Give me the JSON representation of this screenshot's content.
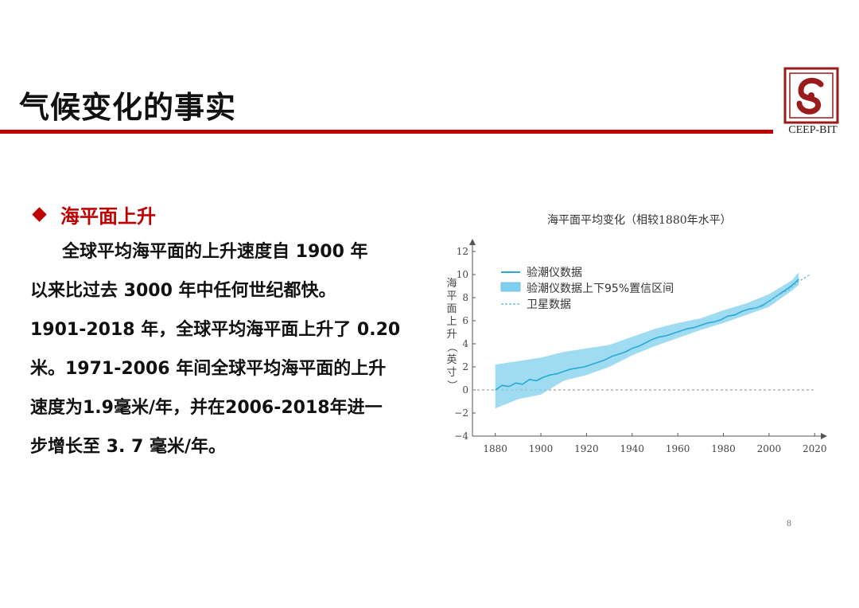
{
  "slide": {
    "title": "气候变化的事实",
    "logo_text": "CEEP-BIT",
    "page_number": "8",
    "accent_color": "#c00000"
  },
  "bullet": {
    "label": "海平面上升",
    "lines": [
      "全球平均海平面的上升速度自 1900 年",
      "以来比过去 3000 年中任何世纪都快。",
      "1901-2018 年，全球平均海平面上升了 0.20",
      "米。1971-2006 年间全球平均海平面的上升",
      "速度为1.9毫米/年，并在2006-2018年进一",
      "步增长至 3. 7 毫米/年。"
    ]
  },
  "chart_data": {
    "type": "line",
    "title": "海平面平均变化（相较1880年水平）",
    "ylabel": "海平面上升（英寸）",
    "xlabel": "",
    "xlim": [
      1870,
      2022
    ],
    "ylim": [
      -4,
      12
    ],
    "x_ticks": [
      1880,
      1900,
      1920,
      1940,
      1960,
      1980,
      2000,
      2020
    ],
    "y_ticks": [
      -4,
      -2,
      0,
      2,
      4,
      6,
      8,
      10,
      12
    ],
    "legend_position": "top-left",
    "colors": {
      "tide": "#29a9d6",
      "band": "#7fd0ee",
      "satellite": "#6cc0e0",
      "zero": "#888888"
    },
    "series": [
      {
        "name": "验潮仪数据",
        "x": [
          1880,
          1883,
          1886,
          1889,
          1892,
          1895,
          1898,
          1901,
          1904,
          1907,
          1910,
          1913,
          1916,
          1919,
          1922,
          1925,
          1928,
          1931,
          1934,
          1937,
          1940,
          1943,
          1946,
          1949,
          1952,
          1955,
          1958,
          1961,
          1964,
          1967,
          1970,
          1973,
          1976,
          1979,
          1982,
          1985,
          1988,
          1991,
          1994,
          1997,
          2000,
          2003,
          2006,
          2009,
          2012,
          2013
        ],
        "values": [
          0.0,
          0.4,
          0.3,
          0.6,
          0.5,
          0.9,
          0.8,
          1.1,
          1.3,
          1.4,
          1.6,
          1.8,
          1.9,
          2.0,
          2.2,
          2.4,
          2.6,
          2.9,
          3.1,
          3.3,
          3.6,
          3.8,
          4.1,
          4.4,
          4.6,
          4.7,
          4.9,
          5.1,
          5.3,
          5.4,
          5.6,
          5.8,
          5.9,
          6.1,
          6.4,
          6.5,
          6.8,
          7.0,
          7.1,
          7.3,
          7.7,
          8.1,
          8.5,
          8.9,
          9.4,
          9.6
        ]
      },
      {
        "name": "验潮仪数据上下95%置信区间",
        "x": [
          1880,
          1890,
          1900,
          1910,
          1920,
          1930,
          1940,
          1950,
          1960,
          1970,
          1980,
          1990,
          2000,
          2010,
          2013
        ],
        "lower": [
          -1.6,
          -0.8,
          -0.4,
          0.8,
          1.3,
          2.0,
          3.0,
          3.8,
          4.5,
          5.2,
          5.8,
          6.5,
          7.2,
          8.6,
          9.1
        ],
        "upper": [
          2.2,
          2.5,
          2.8,
          3.3,
          3.6,
          3.9,
          4.6,
          5.3,
          5.8,
          6.2,
          6.9,
          7.5,
          8.3,
          9.5,
          10.2
        ]
      },
      {
        "name": "卫星数据",
        "x": [
          1993,
          1998,
          2003,
          2008,
          2013,
          2018
        ],
        "values": [
          7.0,
          7.5,
          8.1,
          8.6,
          9.4,
          10.0
        ]
      }
    ]
  }
}
